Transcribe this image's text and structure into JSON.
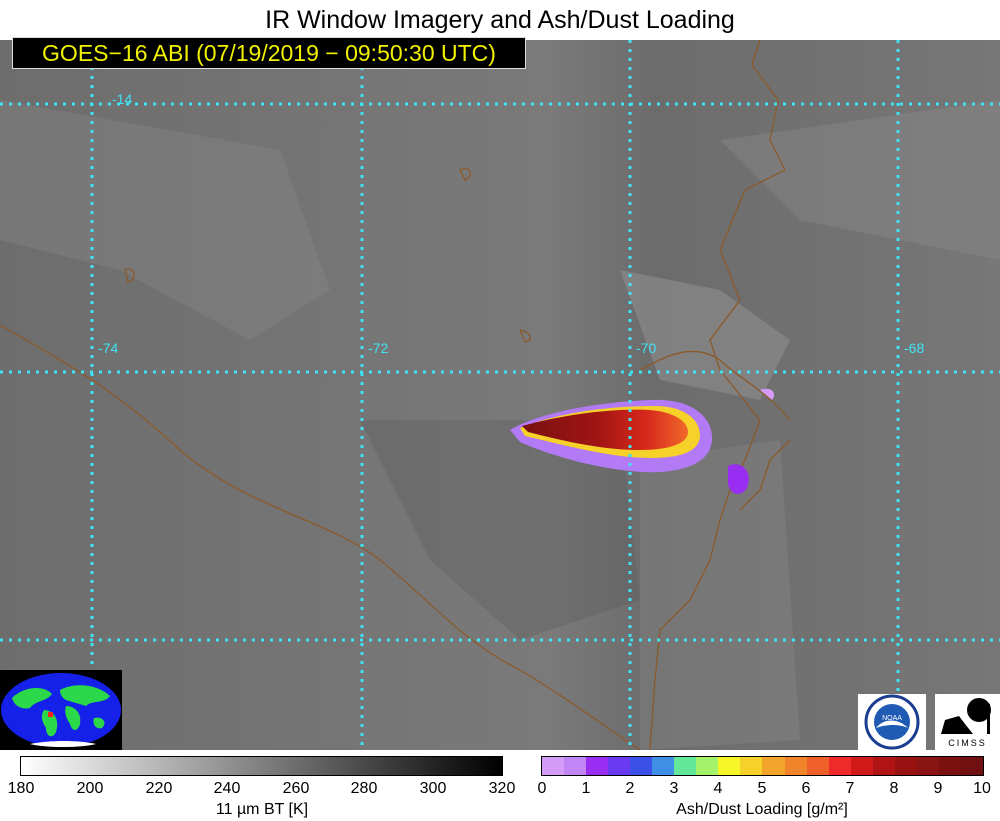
{
  "title": "IR Window Imagery and Ash/Dust Loading",
  "subtitle": "GOES−16 ABI (07/19/2019 − 09:50:30 UTC)",
  "map": {
    "longitude_labels": [
      "-74",
      "-72",
      "-70",
      "-68"
    ],
    "latitude_labels": [
      "-14"
    ],
    "gridline_color": "#3fe3f3",
    "border_color": "#8b5a2b"
  },
  "colorbar_bt": {
    "ticks": [
      "180",
      "200",
      "220",
      "240",
      "260",
      "280",
      "300",
      "320"
    ],
    "label": "11 µm BT [K]"
  },
  "colorbar_ash": {
    "ticks": [
      "0",
      "1",
      "2",
      "3",
      "4",
      "5",
      "6",
      "7",
      "8",
      "9",
      "10"
    ],
    "label": "Ash/Dust Loading [g/m²]",
    "colors": [
      "#d59cf7",
      "#c285f5",
      "#9a2df2",
      "#6a3af2",
      "#3a50e6",
      "#3f8fe6",
      "#63e89a",
      "#a4f26a",
      "#f5f527",
      "#f5d12a",
      "#f2a52a",
      "#f0842a",
      "#f0602a",
      "#ef2a2a",
      "#d11a1a",
      "#b01414",
      "#981212",
      "#8a1414",
      "#7a1010",
      "#701010"
    ]
  },
  "logos": {
    "noaa": "NOAA",
    "cimss": "CIMSS"
  }
}
